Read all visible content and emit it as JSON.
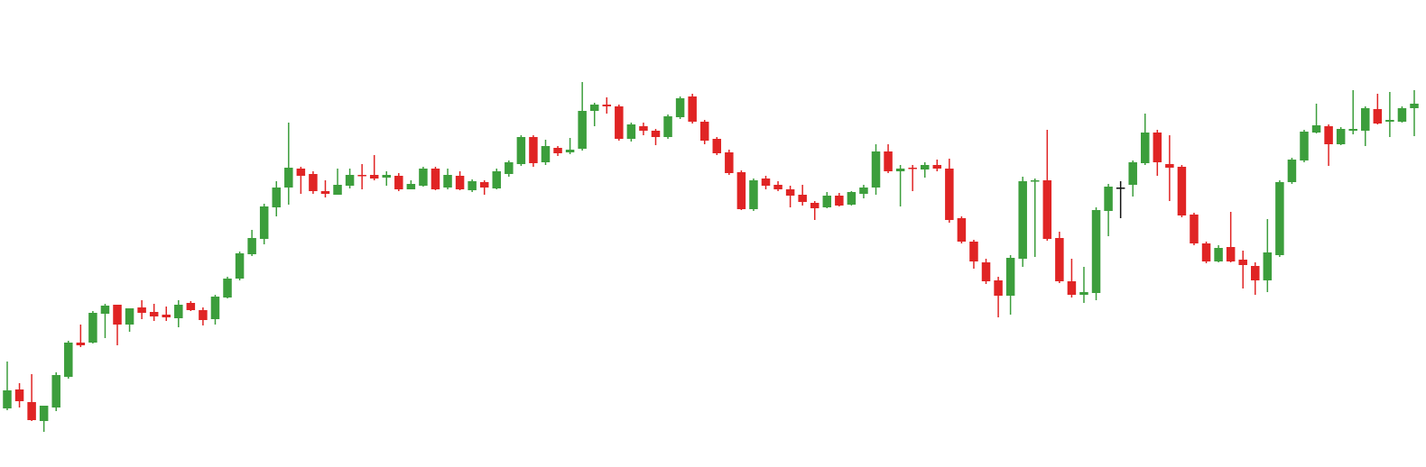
{
  "chart_data": {
    "type": "candlestick",
    "open": [
      65,
      86,
      72,
      51,
      66,
      100,
      138,
      138,
      170,
      180,
      158,
      177,
      172,
      169,
      165,
      182,
      174,
      164,
      188,
      209,
      236,
      253,
      288,
      310,
      331,
      325,
      306,
      302,
      312,
      324,
      324,
      321,
      323,
      308,
      312,
      331,
      310,
      323,
      307,
      316,
      309,
      325,
      336,
      366,
      338,
      354,
      349,
      353,
      395,
      402,
      400,
      364,
      378,
      373,
      366,
      388,
      411,
      383,
      364,
      349,
      327,
      286,
      320,
      313,
      308,
      302,
      293,
      288,
      301,
      291,
      303,
      310,
      350,
      328,
      332,
      330,
      335,
      331,
      276,
      250,
      227,
      207,
      190,
      231,
      317,
      318,
      254,
      206,
      191,
      193,
      284,
      310,
      313,
      337,
      371,
      336,
      333,
      280,
      248,
      228,
      244,
      230,
      223,
      207,
      235,
      316,
      340,
      371,
      378,
      358,
      373,
      373,
      397,
      383,
      383,
      398
    ],
    "high": [
      117,
      93,
      103,
      68,
      105,
      140,
      158,
      173,
      181,
      180,
      176,
      185,
      181,
      178,
      185,
      184,
      177,
      191,
      211,
      239,
      263,
      292,
      317,
      382,
      333,
      328,
      318,
      331,
      331,
      336,
      346,
      328,
      326,
      318,
      333,
      333,
      331,
      328,
      319,
      318,
      331,
      340,
      368,
      368,
      363,
      356,
      365,
      427,
      404,
      410,
      402,
      382,
      382,
      375,
      391,
      411,
      414,
      385,
      366,
      352,
      329,
      320,
      323,
      317,
      312,
      313,
      295,
      305,
      304,
      306,
      313,
      358,
      358,
      335,
      335,
      338,
      341,
      342,
      278,
      252,
      231,
      211,
      235,
      322,
      320,
      374,
      261,
      231,
      222,
      288,
      314,
      317,
      340,
      392,
      374,
      368,
      335,
      282,
      250,
      246,
      283,
      240,
      227,
      275,
      318,
      343,
      374,
      403,
      380,
      377,
      418,
      400,
      414,
      416,
      400,
      418
    ],
    "low": [
      63,
      66,
      51,
      39,
      62,
      98,
      133,
      137,
      143,
      135,
      150,
      164,
      162,
      162,
      155,
      173,
      157,
      158,
      187,
      207,
      234,
      247,
      278,
      291,
      303,
      303,
      299,
      302,
      309,
      308,
      318,
      312,
      306,
      308,
      311,
      307,
      308,
      307,
      305,
      302,
      308,
      322,
      334,
      333,
      335,
      345,
      347,
      351,
      378,
      392,
      362,
      361,
      368,
      357,
      364,
      386,
      381,
      358,
      346,
      324,
      285,
      284,
      308,
      306,
      288,
      290,
      274,
      287,
      289,
      290,
      298,
      302,
      326,
      289,
      306,
      321,
      328,
      271,
      248,
      220,
      203,
      166,
      169,
      222,
      233,
      251,
      204,
      188,
      182,
      185,
      256,
      276,
      300,
      335,
      323,
      295,
      277,
      246,
      226,
      227,
      227,
      198,
      191,
      194,
      233,
      314,
      338,
      370,
      334,
      357,
      369,
      356,
      380,
      366,
      382,
      367
    ],
    "close": [
      85,
      73,
      52,
      68,
      102,
      138,
      135,
      171,
      179,
      158,
      176,
      171,
      167,
      166,
      180,
      174,
      163,
      189,
      209,
      237,
      254,
      289,
      310,
      332,
      323,
      306,
      303,
      313,
      324,
      323,
      320,
      324,
      308,
      314,
      331,
      308,
      324,
      308,
      317,
      310,
      328,
      338,
      366,
      337,
      356,
      348,
      352,
      395,
      402,
      400,
      364,
      380,
      373,
      366,
      389,
      409,
      383,
      362,
      348,
      326,
      286,
      318,
      312,
      308,
      301,
      294,
      287,
      301,
      290,
      305,
      310,
      350,
      328,
      331,
      331,
      335,
      331,
      274,
      250,
      228,
      206,
      190,
      232,
      317,
      318,
      253,
      206,
      191,
      194,
      285,
      311,
      310,
      338,
      371,
      338,
      332,
      279,
      248,
      228,
      243,
      228,
      224,
      207,
      238,
      316,
      341,
      372,
      379,
      358,
      375,
      375,
      398,
      381,
      385,
      398,
      403
    ],
    "up_color": "#3c9e3c",
    "down_color": "#e02424",
    "flat_color": "#111111",
    "ylim": [
      0,
      518
    ]
  }
}
